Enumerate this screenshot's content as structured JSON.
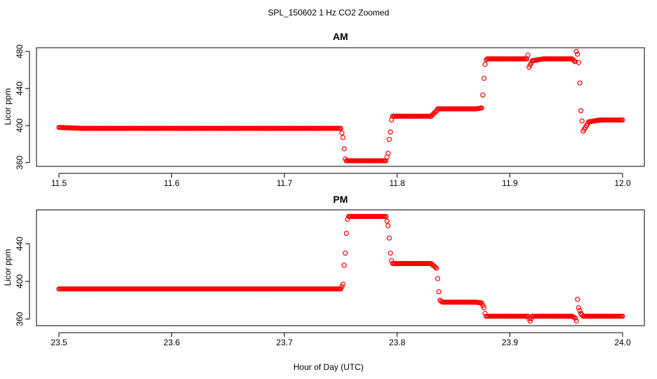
{
  "figure": {
    "title": "SPL_150602  1 Hz CO2 Zoomed",
    "xlabel": "Hour of Day (UTC)"
  },
  "chart_data": [
    {
      "type": "scatter",
      "title": "AM",
      "xlabel": "Hour of Day (UTC)",
      "ylabel": "Licor ppm",
      "xlim": [
        11.5,
        12.0
      ],
      "ylim": [
        356,
        484
      ],
      "xticks": [
        "11.5",
        "11.6",
        "11.7",
        "11.8",
        "11.9",
        "12.0"
      ],
      "yticks": [
        "360",
        "400",
        "440",
        "480"
      ],
      "color": "#ff0000",
      "marker": "open-circle",
      "series": [
        {
          "x": [
            11.5,
            11.52,
            11.55,
            11.6,
            11.65,
            11.7,
            11.73,
            11.75,
            11.752,
            11.753,
            11.754,
            11.755,
            11.76,
            11.77,
            11.78,
            11.79,
            11.792,
            11.793,
            11.794,
            11.795,
            11.796,
            11.8,
            11.81,
            11.82,
            11.83,
            11.835,
            11.836,
            11.84,
            11.85,
            11.86,
            11.87,
            11.875,
            11.876,
            11.877,
            11.878,
            11.879,
            11.88,
            11.89,
            11.9,
            11.91,
            11.915,
            11.916,
            11.917,
            11.92,
            11.93,
            11.94,
            11.95,
            11.955,
            11.958,
            11.959,
            11.96,
            11.961,
            11.962,
            11.963,
            11.965,
            11.97,
            11.98,
            11.99,
            12.0
          ],
          "y": [
            398,
            397,
            397,
            397,
            397,
            397,
            397,
            397,
            387,
            375,
            364,
            362,
            362,
            362,
            362,
            362,
            370,
            385,
            393,
            406,
            410,
            410,
            410,
            410,
            410,
            416,
            418,
            418,
            418,
            418,
            418,
            419,
            433,
            451,
            466,
            471,
            472,
            472,
            472,
            472,
            472,
            476,
            463,
            470,
            472,
            472,
            472,
            472,
            469,
            480,
            477,
            468,
            446,
            416,
            394,
            404,
            406,
            406,
            406
          ]
        }
      ]
    },
    {
      "type": "scatter",
      "title": "PM",
      "xlabel": "Hour of Day (UTC)",
      "ylabel": "Licor ppm",
      "xlim": [
        23.5,
        24.0
      ],
      "ylim": [
        353,
        476
      ],
      "xticks": [
        "23.5",
        "23.6",
        "23.7",
        "23.8",
        "23.9",
        "24.0"
      ],
      "yticks": [
        "360",
        "400",
        "440"
      ],
      "color": "#ff0000",
      "marker": "open-circle",
      "series": [
        {
          "x": [
            23.5,
            23.52,
            23.55,
            23.6,
            23.65,
            23.7,
            23.73,
            23.75,
            23.752,
            23.753,
            23.754,
            23.755,
            23.756,
            23.757,
            23.76,
            23.77,
            23.78,
            23.79,
            23.792,
            23.793,
            23.794,
            23.795,
            23.796,
            23.8,
            23.81,
            23.82,
            23.83,
            23.835,
            23.836,
            23.837,
            23.838,
            23.84,
            23.85,
            23.86,
            23.87,
            23.875,
            23.877,
            23.878,
            23.879,
            23.88,
            23.89,
            23.9,
            23.91,
            23.916,
            23.918,
            23.92,
            23.93,
            23.94,
            23.95,
            23.955,
            23.958,
            23.959,
            23.96,
            23.961,
            23.963,
            23.965,
            23.97,
            23.98,
            23.99,
            24.0
          ],
          "y": [
            392,
            392,
            392,
            392,
            392,
            392,
            392,
            392,
            397,
            417,
            430,
            451,
            466,
            469,
            469,
            469,
            469,
            469,
            459,
            446,
            430,
            422,
            419,
            419,
            419,
            419,
            419,
            414,
            403,
            389,
            380,
            378,
            378,
            378,
            378,
            377,
            372,
            366,
            363,
            363,
            363,
            363,
            363,
            363,
            358,
            363,
            363,
            363,
            363,
            363,
            361,
            358,
            381,
            372,
            366,
            363,
            363,
            363,
            363,
            363
          ]
        }
      ]
    }
  ]
}
